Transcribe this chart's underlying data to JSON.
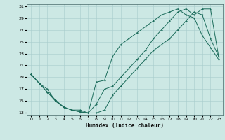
{
  "xlabel": "Humidex (Indice chaleur)",
  "bg_color": "#cce8e4",
  "grid_color": "#a8cccc",
  "line_color": "#1a6b5a",
  "xlim": [
    0,
    23
  ],
  "ylim": [
    13,
    31
  ],
  "xticks": [
    0,
    1,
    2,
    3,
    4,
    5,
    6,
    7,
    8,
    9,
    10,
    11,
    12,
    13,
    14,
    15,
    16,
    17,
    18,
    19,
    20,
    21,
    22,
    23
  ],
  "yticks": [
    13,
    15,
    17,
    19,
    21,
    23,
    25,
    27,
    29,
    31
  ],
  "curve1_x": [
    0,
    1,
    2,
    3,
    4,
    5,
    6,
    7,
    8,
    9,
    10,
    11,
    12,
    13,
    14,
    15,
    16,
    17,
    18,
    19,
    20,
    21,
    22,
    23
  ],
  "curve1_y": [
    19.5,
    18.0,
    16.5,
    15.2,
    14.0,
    13.5,
    13.2,
    13.0,
    13.0,
    13.5,
    16.0,
    17.5,
    19.0,
    20.5,
    22.0,
    23.5,
    24.5,
    25.5,
    27.0,
    28.5,
    30.0,
    29.5,
    25.5,
    22.5
  ],
  "curve2_x": [
    0,
    1,
    2,
    3,
    4,
    5,
    6,
    7,
    8,
    9,
    10,
    11,
    12,
    13,
    14,
    15,
    16,
    17,
    18,
    19,
    20,
    21,
    22,
    23
  ],
  "curve2_y": [
    19.5,
    18.0,
    16.5,
    15.0,
    14.0,
    13.5,
    13.2,
    13.0,
    18.2,
    18.5,
    22.5,
    24.5,
    25.5,
    26.5,
    27.5,
    28.5,
    29.5,
    30.0,
    30.5,
    29.5,
    29.0,
    26.0,
    24.0,
    22.0
  ],
  "curve3_x": [
    0,
    1,
    2,
    3,
    4,
    5,
    6,
    7,
    8,
    9,
    10,
    11,
    12,
    13,
    14,
    15,
    16,
    17,
    18,
    19,
    20,
    21,
    22,
    23
  ],
  "curve3_y": [
    19.5,
    18.0,
    17.0,
    15.0,
    14.0,
    13.5,
    13.5,
    13.0,
    14.5,
    17.0,
    17.5,
    19.0,
    20.5,
    22.0,
    23.5,
    25.5,
    27.0,
    28.5,
    30.0,
    30.5,
    29.5,
    30.5,
    30.5,
    22.5
  ]
}
